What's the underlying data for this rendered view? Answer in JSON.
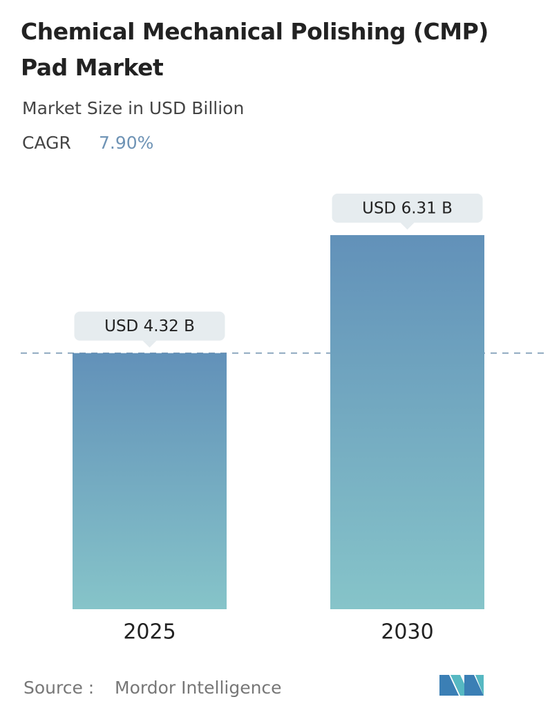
{
  "chart_data": {
    "type": "bar",
    "title": "Chemical Mechanical Polishing (CMP) Pad Market",
    "subtitle": "Market Size in USD Billion",
    "cagr": {
      "label": "CAGR",
      "value": "7.90%"
    },
    "categories": [
      "2025",
      "2030"
    ],
    "values": [
      4.32,
      6.31
    ],
    "value_labels": [
      "USD 4.32 B",
      "USD 6.31 B"
    ],
    "source": {
      "label": "Source :",
      "value": "Mordor Intelligence"
    }
  }
}
